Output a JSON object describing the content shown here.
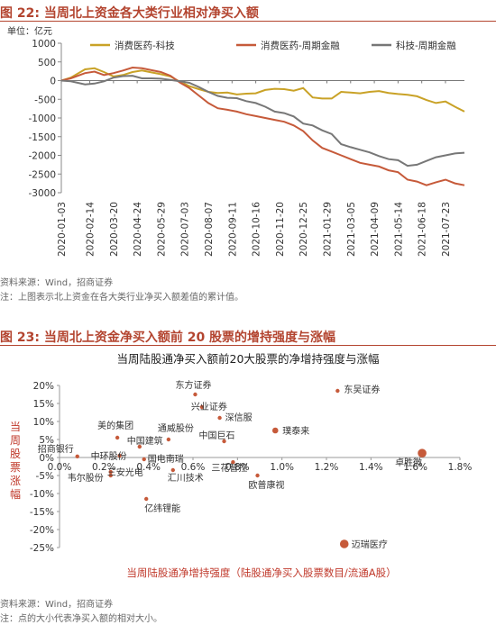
{
  "fig1": {
    "title": "图 22:  当周北上资金各大类行业相对净买入额",
    "source": "资料来源：Wind，招商证券",
    "note": "注：上图表示北上资金在各大类行业净买入额差值的累计值。"
  },
  "fig2": {
    "title": "图 23:  当周北上资金净买入额前 20 股票的增持强度与涨幅",
    "source": "资料来源：Wind，招商证券",
    "note": "注：点的大小代表净买入额的相对大小。"
  },
  "chart_data": [
    {
      "type": "line",
      "unit_label": "单位：亿元",
      "ylim": [
        -3000,
        1000
      ],
      "yticks": [
        1000,
        500,
        0,
        -500,
        -1000,
        -1500,
        -2000,
        -2500,
        -3000
      ],
      "x_tick_labels": [
        "2020-01-03",
        "2020-02-14",
        "2020-03-20",
        "2020-04-24",
        "2020-05-29",
        "2020-07-03",
        "2020-08-07",
        "2020-09-11",
        "2020-10-16",
        "2020-11-20",
        "2020-12-25",
        "2021-01-29",
        "2021-03-05",
        "2021-04-09",
        "2021-05-14",
        "2021-06-18",
        "2021-07-23"
      ],
      "x_start": "2020-01-03",
      "x_end": "2021-08-20",
      "legend_position": "top",
      "series": [
        {
          "name": "消费医药-科技",
          "color": "#c9a227",
          "points": [
            [
              "2020-01-03",
              0
            ],
            [
              "2020-01-17",
              80
            ],
            [
              "2020-02-07",
              300
            ],
            [
              "2020-02-21",
              330
            ],
            [
              "2020-03-06",
              230
            ],
            [
              "2020-03-20",
              110
            ],
            [
              "2020-04-03",
              150
            ],
            [
              "2020-04-17",
              230
            ],
            [
              "2020-05-01",
              270
            ],
            [
              "2020-05-15",
              220
            ],
            [
              "2020-05-29",
              170
            ],
            [
              "2020-06-12",
              110
            ],
            [
              "2020-06-26",
              -30
            ],
            [
              "2020-07-10",
              -150
            ],
            [
              "2020-07-24",
              -230
            ],
            [
              "2020-08-07",
              -300
            ],
            [
              "2020-08-21",
              -330
            ],
            [
              "2020-09-04",
              -320
            ],
            [
              "2020-09-18",
              -370
            ],
            [
              "2020-10-02",
              -350
            ],
            [
              "2020-10-16",
              -340
            ],
            [
              "2020-10-30",
              -250
            ],
            [
              "2020-11-13",
              -220
            ],
            [
              "2020-11-27",
              -230
            ],
            [
              "2020-12-11",
              -270
            ],
            [
              "2020-12-25",
              -200
            ],
            [
              "2021-01-08",
              -450
            ],
            [
              "2021-01-22",
              -480
            ],
            [
              "2021-02-05",
              -480
            ],
            [
              "2021-02-19",
              -300
            ],
            [
              "2021-03-05",
              -320
            ],
            [
              "2021-03-19",
              -340
            ],
            [
              "2021-04-02",
              -300
            ],
            [
              "2021-04-16",
              -280
            ],
            [
              "2021-04-30",
              -330
            ],
            [
              "2021-05-14",
              -360
            ],
            [
              "2021-05-28",
              -380
            ],
            [
              "2021-06-11",
              -420
            ],
            [
              "2021-06-25",
              -520
            ],
            [
              "2021-07-09",
              -600
            ],
            [
              "2021-07-23",
              -560
            ],
            [
              "2021-08-06",
              -700
            ],
            [
              "2021-08-20",
              -830
            ]
          ]
        },
        {
          "name": "消费医药-周期金融",
          "color": "#c65a3a",
          "points": [
            [
              "2020-01-03",
              0
            ],
            [
              "2020-01-17",
              60
            ],
            [
              "2020-02-07",
              200
            ],
            [
              "2020-02-21",
              240
            ],
            [
              "2020-03-06",
              150
            ],
            [
              "2020-03-20",
              200
            ],
            [
              "2020-04-03",
              270
            ],
            [
              "2020-04-17",
              350
            ],
            [
              "2020-05-01",
              330
            ],
            [
              "2020-05-15",
              280
            ],
            [
              "2020-05-29",
              230
            ],
            [
              "2020-06-12",
              130
            ],
            [
              "2020-06-26",
              -50
            ],
            [
              "2020-07-10",
              -200
            ],
            [
              "2020-07-24",
              -400
            ],
            [
              "2020-08-07",
              -600
            ],
            [
              "2020-08-21",
              -740
            ],
            [
              "2020-09-04",
              -780
            ],
            [
              "2020-09-18",
              -830
            ],
            [
              "2020-10-02",
              -900
            ],
            [
              "2020-10-16",
              -950
            ],
            [
              "2020-10-30",
              -1000
            ],
            [
              "2020-11-13",
              -1050
            ],
            [
              "2020-11-27",
              -1100
            ],
            [
              "2020-12-11",
              -1200
            ],
            [
              "2020-12-25",
              -1350
            ],
            [
              "2021-01-08",
              -1600
            ],
            [
              "2021-01-22",
              -1800
            ],
            [
              "2021-02-05",
              -1900
            ],
            [
              "2021-02-19",
              -2000
            ],
            [
              "2021-03-05",
              -2100
            ],
            [
              "2021-03-19",
              -2200
            ],
            [
              "2021-04-02",
              -2250
            ],
            [
              "2021-04-16",
              -2300
            ],
            [
              "2021-04-30",
              -2400
            ],
            [
              "2021-05-14",
              -2450
            ],
            [
              "2021-05-28",
              -2650
            ],
            [
              "2021-06-11",
              -2700
            ],
            [
              "2021-06-25",
              -2800
            ],
            [
              "2021-07-09",
              -2720
            ],
            [
              "2021-07-23",
              -2650
            ],
            [
              "2021-08-06",
              -2750
            ],
            [
              "2021-08-20",
              -2800
            ]
          ]
        },
        {
          "name": "科技-周期金融",
          "color": "#777777",
          "points": [
            [
              "2020-01-03",
              0
            ],
            [
              "2020-01-17",
              -20
            ],
            [
              "2020-02-07",
              -100
            ],
            [
              "2020-02-21",
              -80
            ],
            [
              "2020-03-06",
              -20
            ],
            [
              "2020-03-20",
              80
            ],
            [
              "2020-04-03",
              120
            ],
            [
              "2020-04-17",
              130
            ],
            [
              "2020-05-01",
              60
            ],
            [
              "2020-05-15",
              60
            ],
            [
              "2020-05-29",
              50
            ],
            [
              "2020-06-12",
              20
            ],
            [
              "2020-06-26",
              -20
            ],
            [
              "2020-07-10",
              -60
            ],
            [
              "2020-07-24",
              -170
            ],
            [
              "2020-08-07",
              -300
            ],
            [
              "2020-08-21",
              -410
            ],
            [
              "2020-09-04",
              -460
            ],
            [
              "2020-09-18",
              -470
            ],
            [
              "2020-10-02",
              -550
            ],
            [
              "2020-10-16",
              -600
            ],
            [
              "2020-10-30",
              -700
            ],
            [
              "2020-11-13",
              -830
            ],
            [
              "2020-11-27",
              -870
            ],
            [
              "2020-12-11",
              -960
            ],
            [
              "2020-12-25",
              -1150
            ],
            [
              "2021-01-08",
              -1200
            ],
            [
              "2021-01-22",
              -1330
            ],
            [
              "2021-02-05",
              -1430
            ],
            [
              "2021-02-19",
              -1700
            ],
            [
              "2021-03-05",
              -1780
            ],
            [
              "2021-03-19",
              -1850
            ],
            [
              "2021-04-02",
              -1920
            ],
            [
              "2021-04-16",
              -2020
            ],
            [
              "2021-04-30",
              -2100
            ],
            [
              "2021-05-14",
              -2130
            ],
            [
              "2021-05-28",
              -2280
            ],
            [
              "2021-06-11",
              -2250
            ],
            [
              "2021-06-25",
              -2150
            ],
            [
              "2021-07-09",
              -2050
            ],
            [
              "2021-07-23",
              -2000
            ],
            [
              "2021-08-06",
              -1950
            ],
            [
              "2021-08-20",
              -1930
            ]
          ]
        }
      ]
    },
    {
      "type": "scatter",
      "title": "当周陆股通净买入额前20大股票的净增持强度与涨幅",
      "xlabel": "当周陆股通净增持强度（陆股通净买入股票数目/流通A股）",
      "ylabel": "当周股票涨幅",
      "xlim": [
        0,
        0.018
      ],
      "ylim": [
        -0.25,
        0.2
      ],
      "xtick_labels": [
        "0.0%",
        "0.2%",
        "0.4%",
        "0.6%",
        "0.8%",
        "1.0%",
        "1.2%",
        "1.4%",
        "1.6%",
        "1.8%"
      ],
      "ytick_labels": [
        "20%",
        "15%",
        "10%",
        "5%",
        "0%",
        "-5%",
        "-10%",
        "-15%",
        "-20%",
        "-25%"
      ],
      "point_color": "#c65a3a",
      "points": [
        {
          "label": "东方证券",
          "x": 0.0061,
          "y": 0.175,
          "size": 1
        },
        {
          "label": "东吴证券",
          "x": 0.0125,
          "y": 0.185,
          "size": 1
        },
        {
          "label": "兴业证券",
          "x": 0.0064,
          "y": 0.14,
          "size": 1
        },
        {
          "label": "深信服",
          "x": 0.0072,
          "y": 0.11,
          "size": 1
        },
        {
          "label": "璞泰来",
          "x": 0.0097,
          "y": 0.075,
          "size": 2
        },
        {
          "label": "中国巨石",
          "x": 0.0074,
          "y": 0.045,
          "size": 1
        },
        {
          "label": "美的集团",
          "x": 0.0026,
          "y": 0.055,
          "size": 1
        },
        {
          "label": "通威股份",
          "x": 0.0049,
          "y": 0.05,
          "size": 1
        },
        {
          "label": "中国建筑",
          "x": 0.0036,
          "y": 0.03,
          "size": 1
        },
        {
          "label": "招商银行",
          "x": 0.0008,
          "y": 0.003,
          "size": 1
        },
        {
          "label": "中环股份",
          "x": 0.0027,
          "y": 0.005,
          "size": 1
        },
        {
          "label": "国电南瑞",
          "x": 0.0038,
          "y": -0.005,
          "size": 1
        },
        {
          "label": "三花智控",
          "x": 0.0078,
          "y": -0.013,
          "size": 1
        },
        {
          "label": "韦尔股份",
          "x": 0.0023,
          "y": -0.04,
          "size": 1
        },
        {
          "label": "三安光电",
          "x": 0.0023,
          "y": -0.05,
          "size": 1
        },
        {
          "label": "汇川技术",
          "x": 0.0051,
          "y": -0.035,
          "size": 1
        },
        {
          "label": "欧普康视",
          "x": 0.0089,
          "y": -0.05,
          "size": 1
        },
        {
          "label": "亿纬锂能",
          "x": 0.0039,
          "y": -0.115,
          "size": 1
        },
        {
          "label": "卓胜微",
          "x": 0.0163,
          "y": 0.012,
          "size": 3
        },
        {
          "label": "迈瑞医疗",
          "x": 0.0128,
          "y": -0.24,
          "size": 3
        }
      ]
    }
  ]
}
